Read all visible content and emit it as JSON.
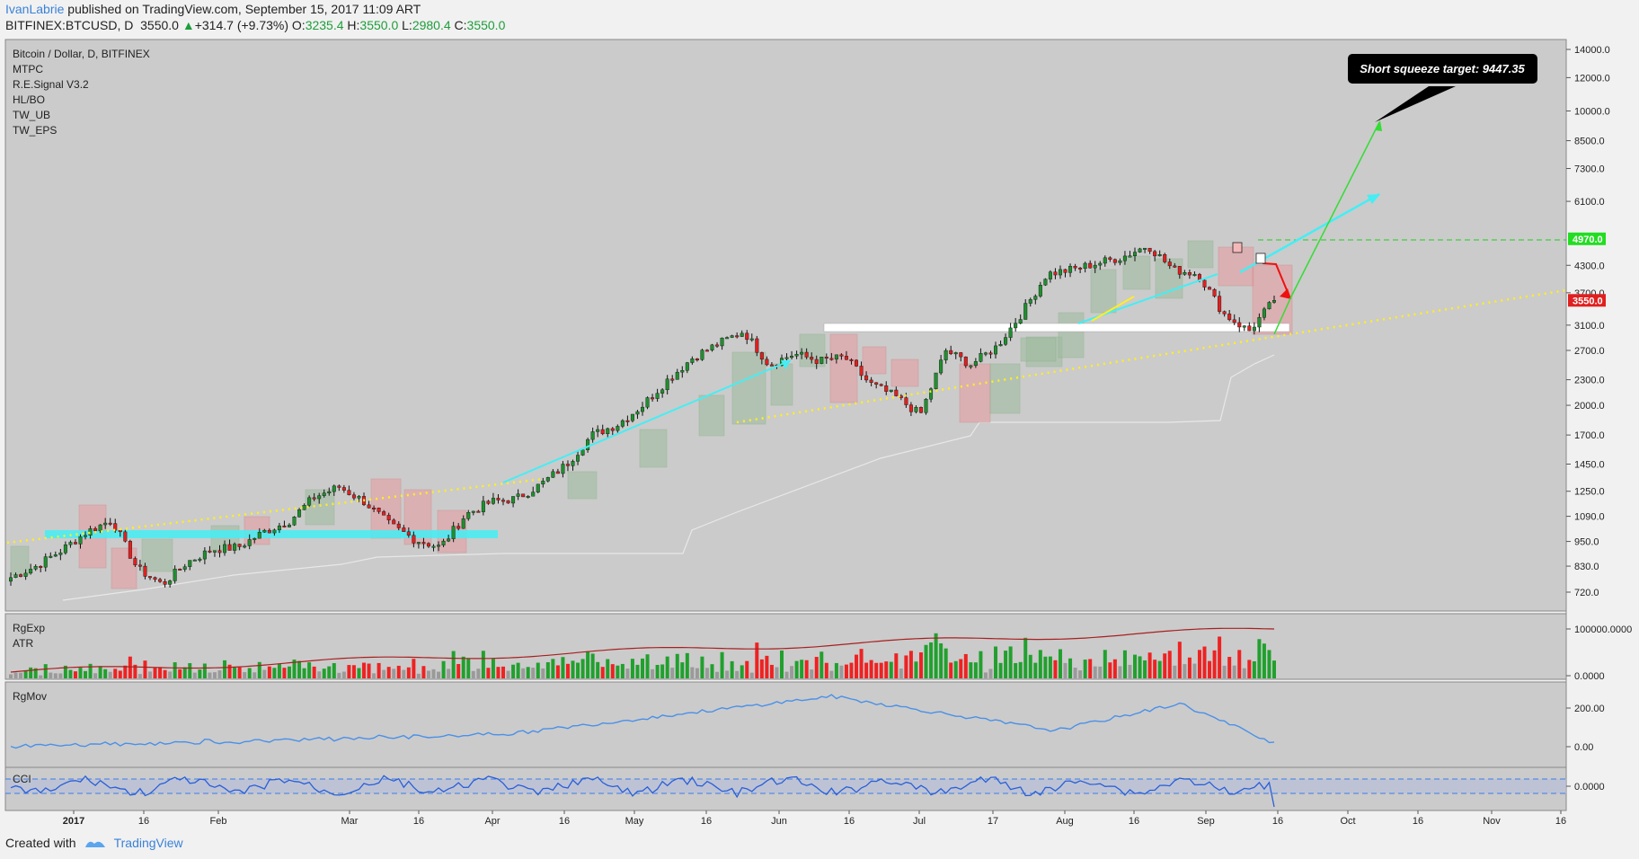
{
  "header": {
    "author": "IvanLabrie",
    "published": " published on TradingView.com, September 15, 2017 11:09 ART",
    "symbol": "BITFINEX:BTCUSD, D",
    "last": "3550.0",
    "change": "+314.7 (+9.73%)",
    "o_label": "O:",
    "o": "3235.4",
    "h_label": "H:",
    "h": "3550.0",
    "l_label": "L:",
    "l": "2980.4",
    "c_label": "C:",
    "c": "3550.0"
  },
  "legend": [
    "Bitcoin / Dollar, D, BITFINEX",
    "MTPC",
    "R.E.Signal V3.2",
    "HL/BO",
    "TW_UB",
    "TW_EPS"
  ],
  "panes": {
    "rgexp": "RgExp",
    "atr": "ATR",
    "rgmov": "RgMov",
    "cci": "CCI"
  },
  "annotation": "Short squeeze target: 9447.35",
  "footer": {
    "created_with": "Created with",
    "brand": "TradingView"
  },
  "colors": {
    "up": "#1f8f2e",
    "down": "#e02020",
    "cyan": "#3ee0f0",
    "yellow": "#ffee22",
    "green_arrow": "#33dd33",
    "blue_line": "#3b7de8"
  },
  "chart_data": {
    "type": "candlestick",
    "symbol": "BTCUSD",
    "timeframe": "D",
    "y_log": true,
    "price_ticks": [
      "14000.0",
      "12000.0",
      "10000.0",
      "8500.0",
      "7300.0",
      "6100.0",
      "4300.0",
      "3700.0",
      "3100.0",
      "2700.0",
      "2300.0",
      "2000.0",
      "1700.0",
      "1450.0",
      "1250.0",
      "1090.0",
      "950.0",
      "830.0",
      "720.0"
    ],
    "price_markers": [
      {
        "label": "4970.0",
        "color": "#22dd22"
      },
      {
        "label": "3550.0",
        "color": "#e02020"
      }
    ],
    "x_ticks": [
      "2017",
      "16",
      "Feb",
      "Mar",
      "16",
      "Apr",
      "16",
      "May",
      "16",
      "Jun",
      "16",
      "Jul",
      "17",
      "Aug",
      "16",
      "Sep",
      "16",
      "Oct",
      "16",
      "Nov",
      "16"
    ],
    "atr_ticks": [
      "100000.0000",
      "0.0000"
    ],
    "rgmov_ticks": [
      "200.00",
      "0.00"
    ],
    "cci_ticks": [
      "0.0000"
    ],
    "closes": [
      780,
      830,
      905,
      1000,
      1070,
      820,
      750,
      850,
      910,
      920,
      1000,
      1060,
      1210,
      1280,
      1180,
      1040,
      960,
      920,
      1100,
      1180,
      1200,
      1300,
      1450,
      1700,
      1800,
      2000,
      2300,
      2600,
      2800,
      3000,
      2500,
      2650,
      2550,
      2600,
      2250,
      2100,
      1900,
      2700,
      2500,
      2750,
      3300,
      4100,
      4200,
      4350,
      4500,
      4800,
      4200,
      4100,
      3300,
      3000,
      3550
    ],
    "target": 9447.35,
    "last": 3550.0
  }
}
